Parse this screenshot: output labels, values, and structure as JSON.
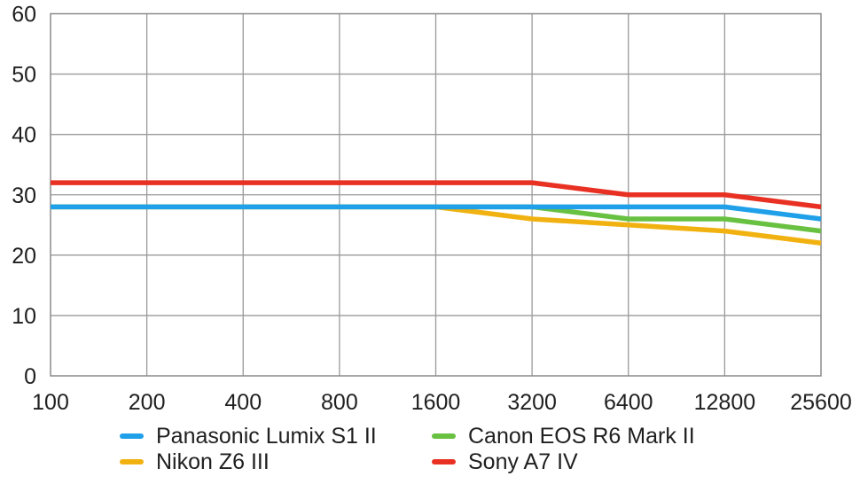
{
  "chart_data": {
    "type": "line",
    "title": "",
    "x_axis": {
      "label": "",
      "categories": [
        "100",
        "200",
        "400",
        "800",
        "1600",
        "3200",
        "6400",
        "12800",
        "25600"
      ],
      "scale": "log2-categorical"
    },
    "y_axis": {
      "label": "",
      "min": 0,
      "max": 60,
      "ticks": [
        0,
        10,
        20,
        30,
        40,
        50,
        60
      ]
    },
    "grid": true,
    "legend_position": "bottom",
    "series": [
      {
        "name": "Nikon Z6 III",
        "color": "#F1B211",
        "values": [
          28,
          28,
          28,
          28,
          28,
          26,
          25,
          24,
          22
        ]
      },
      {
        "name": "Canon EOS R6 Mark II",
        "color": "#68C140",
        "values": [
          28,
          28,
          28,
          28,
          28,
          28,
          26,
          26,
          24
        ]
      },
      {
        "name": "Panasonic Lumix S1 II",
        "color": "#1FA0E9",
        "values": [
          28,
          28,
          28,
          28,
          28,
          28,
          28,
          28,
          26
        ]
      },
      {
        "name": "Sony A7 IV",
        "color": "#E93123",
        "values": [
          32,
          32,
          32,
          32,
          32,
          32,
          30,
          30,
          28
        ]
      }
    ],
    "legend_display_order": [
      2,
      1,
      0,
      3
    ]
  },
  "colors": {
    "background": "#FFFFFF",
    "gridline": "#9A9A9A",
    "plot_border": "#8A8A8A",
    "tick_text": "#1F1F1F",
    "legend_text": "#1F1F1F"
  }
}
